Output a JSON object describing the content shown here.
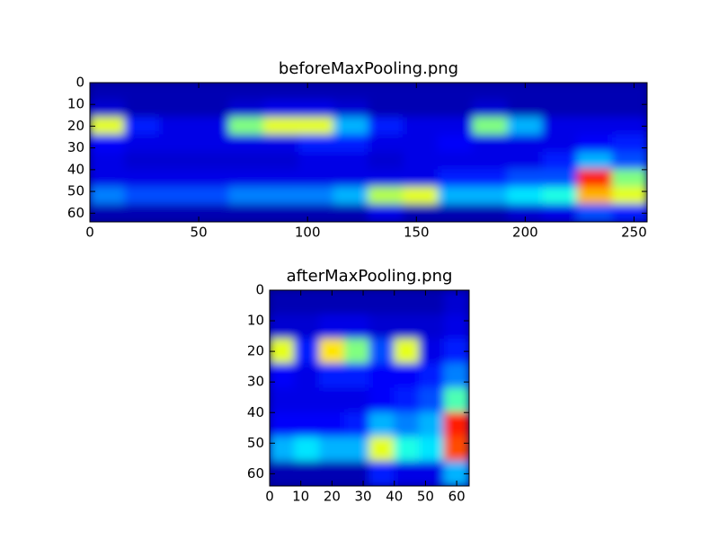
{
  "chart_data": [
    {
      "type": "heatmap",
      "title": "beforeMaxPooling.png",
      "colormap": "jet",
      "clim": [
        0,
        1
      ],
      "xlim": [
        0,
        256
      ],
      "ylim": [
        64,
        0
      ],
      "xticks": [
        0,
        50,
        100,
        150,
        200,
        250
      ],
      "yticks": [
        0,
        10,
        20,
        30,
        40,
        50,
        60
      ],
      "values": [
        [
          0.05,
          0.05,
          0.05,
          0.05,
          0.05,
          0.05,
          0.05,
          0.05,
          0.05,
          0.05,
          0.05,
          0.05,
          0.05,
          0.05,
          0.05,
          0.05
        ],
        [
          0.08,
          0.05,
          0.05,
          0.05,
          0.08,
          0.1,
          0.1,
          0.08,
          0.05,
          0.05,
          0.05,
          0.08,
          0.05,
          0.05,
          0.05,
          0.05
        ],
        [
          0.6,
          0.15,
          0.1,
          0.1,
          0.5,
          0.6,
          0.6,
          0.3,
          0.15,
          0.1,
          0.1,
          0.5,
          0.3,
          0.1,
          0.1,
          0.1
        ],
        [
          0.12,
          0.1,
          0.1,
          0.1,
          0.1,
          0.1,
          0.15,
          0.15,
          0.1,
          0.1,
          0.12,
          0.1,
          0.1,
          0.1,
          0.12,
          0.15
        ],
        [
          0.1,
          0.08,
          0.08,
          0.08,
          0.08,
          0.08,
          0.1,
          0.1,
          0.08,
          0.1,
          0.1,
          0.1,
          0.1,
          0.15,
          0.3,
          0.2
        ],
        [
          0.1,
          0.1,
          0.1,
          0.1,
          0.1,
          0.1,
          0.1,
          0.1,
          0.1,
          0.1,
          0.15,
          0.15,
          0.2,
          0.2,
          0.85,
          0.5
        ],
        [
          0.25,
          0.2,
          0.2,
          0.2,
          0.25,
          0.25,
          0.25,
          0.3,
          0.55,
          0.6,
          0.3,
          0.3,
          0.35,
          0.4,
          0.7,
          0.6
        ],
        [
          0.05,
          0.05,
          0.05,
          0.05,
          0.05,
          0.05,
          0.05,
          0.05,
          0.1,
          0.05,
          0.05,
          0.05,
          0.08,
          0.1,
          0.2,
          0.15
        ]
      ]
    },
    {
      "type": "heatmap",
      "title": "afterMaxPooling.png",
      "colormap": "jet",
      "clim": [
        0,
        1
      ],
      "xlim": [
        0,
        64
      ],
      "ylim": [
        64,
        0
      ],
      "xticks": [
        0,
        10,
        20,
        30,
        40,
        50,
        60
      ],
      "yticks": [
        0,
        10,
        20,
        30,
        40,
        50,
        60
      ],
      "values": [
        [
          0.05,
          0.05,
          0.05,
          0.05,
          0.05,
          0.05,
          0.05,
          0.08
        ],
        [
          0.08,
          0.08,
          0.1,
          0.1,
          0.08,
          0.08,
          0.08,
          0.1
        ],
        [
          0.6,
          0.15,
          0.65,
          0.5,
          0.2,
          0.6,
          0.1,
          0.15
        ],
        [
          0.12,
          0.1,
          0.15,
          0.15,
          0.12,
          0.12,
          0.15,
          0.25
        ],
        [
          0.1,
          0.1,
          0.1,
          0.1,
          0.12,
          0.15,
          0.2,
          0.45
        ],
        [
          0.12,
          0.12,
          0.12,
          0.15,
          0.3,
          0.25,
          0.3,
          0.85
        ],
        [
          0.3,
          0.35,
          0.3,
          0.3,
          0.6,
          0.4,
          0.35,
          0.8
        ],
        [
          0.05,
          0.05,
          0.05,
          0.05,
          0.15,
          0.1,
          0.1,
          0.3
        ]
      ]
    }
  ]
}
